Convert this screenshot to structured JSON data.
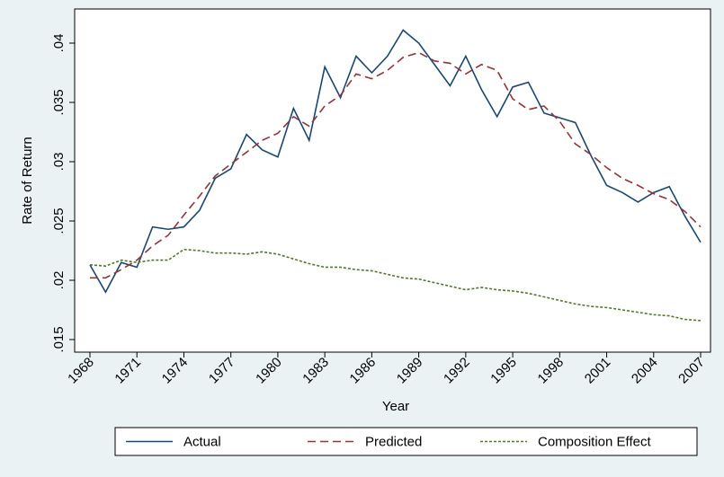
{
  "chart_data": {
    "type": "line",
    "x_label": "Year",
    "y_label": "Rate of Return",
    "x": [
      1968,
      1969,
      1970,
      1971,
      1972,
      1973,
      1974,
      1975,
      1976,
      1977,
      1978,
      1979,
      1980,
      1981,
      1982,
      1983,
      1984,
      1985,
      1986,
      1987,
      1988,
      1989,
      1990,
      1991,
      1992,
      1993,
      1994,
      1995,
      1996,
      1997,
      1998,
      1999,
      2000,
      2001,
      2002,
      2003,
      2004,
      2005,
      2006,
      2007
    ],
    "series": [
      {
        "name": "Actual",
        "color": "#1a476f",
        "line_style": "solid",
        "values": [
          0.0213,
          0.019,
          0.0215,
          0.0211,
          0.0245,
          0.0243,
          0.0245,
          0.0259,
          0.0286,
          0.0294,
          0.0323,
          0.031,
          0.0304,
          0.0345,
          0.0318,
          0.038,
          0.0354,
          0.0389,
          0.0375,
          0.0389,
          0.0411,
          0.04,
          0.0382,
          0.0364,
          0.0389,
          0.0361,
          0.0338,
          0.0363,
          0.0367,
          0.0341,
          0.0337,
          0.0333,
          0.0305,
          0.028,
          0.0274,
          0.0266,
          0.0274,
          0.0279,
          0.0254,
          0.0232
        ]
      },
      {
        "name": "Predicted",
        "color": "#90353b",
        "line_style": "dash",
        "values": [
          0.0202,
          0.0202,
          0.0209,
          0.0217,
          0.0229,
          0.0238,
          0.0255,
          0.0271,
          0.0288,
          0.0298,
          0.0308,
          0.0318,
          0.0324,
          0.0338,
          0.033,
          0.0347,
          0.0356,
          0.0374,
          0.037,
          0.0377,
          0.0388,
          0.0392,
          0.0385,
          0.0383,
          0.0374,
          0.0382,
          0.0377,
          0.0353,
          0.0344,
          0.0347,
          0.0334,
          0.0315,
          0.0306,
          0.0295,
          0.0286,
          0.028,
          0.0273,
          0.0268,
          0.0258,
          0.0245
        ]
      },
      {
        "name": "Composition Effect",
        "color": "#55752f",
        "line_style": "shortdash",
        "values": [
          0.0213,
          0.0212,
          0.0217,
          0.0215,
          0.0217,
          0.0217,
          0.0226,
          0.0225,
          0.0223,
          0.0223,
          0.0222,
          0.0224,
          0.0222,
          0.0218,
          0.0214,
          0.0211,
          0.0211,
          0.0209,
          0.0208,
          0.0205,
          0.0202,
          0.0201,
          0.0198,
          0.0195,
          0.0192,
          0.0194,
          0.0192,
          0.0191,
          0.0189,
          0.0186,
          0.0183,
          0.018,
          0.0178,
          0.0177,
          0.0175,
          0.0173,
          0.0171,
          0.017,
          0.0167,
          0.0166
        ]
      }
    ],
    "xlim": [
      1968,
      2007
    ],
    "xticks": [
      1968,
      1971,
      1974,
      1977,
      1980,
      1983,
      1986,
      1989,
      1992,
      1995,
      1998,
      2001,
      2004,
      2007
    ],
    "ylim": [
      0.015,
      0.04
    ],
    "yticks": [
      {
        "value": 0.015,
        "label": ".015"
      },
      {
        "value": 0.02,
        "label": ".02"
      },
      {
        "value": 0.025,
        "label": ".025"
      },
      {
        "value": 0.03,
        "label": ".03"
      },
      {
        "value": 0.035,
        "label": ".035"
      },
      {
        "value": 0.04,
        "label": ".04"
      }
    ],
    "legend": "bottom",
    "grid": false
  }
}
